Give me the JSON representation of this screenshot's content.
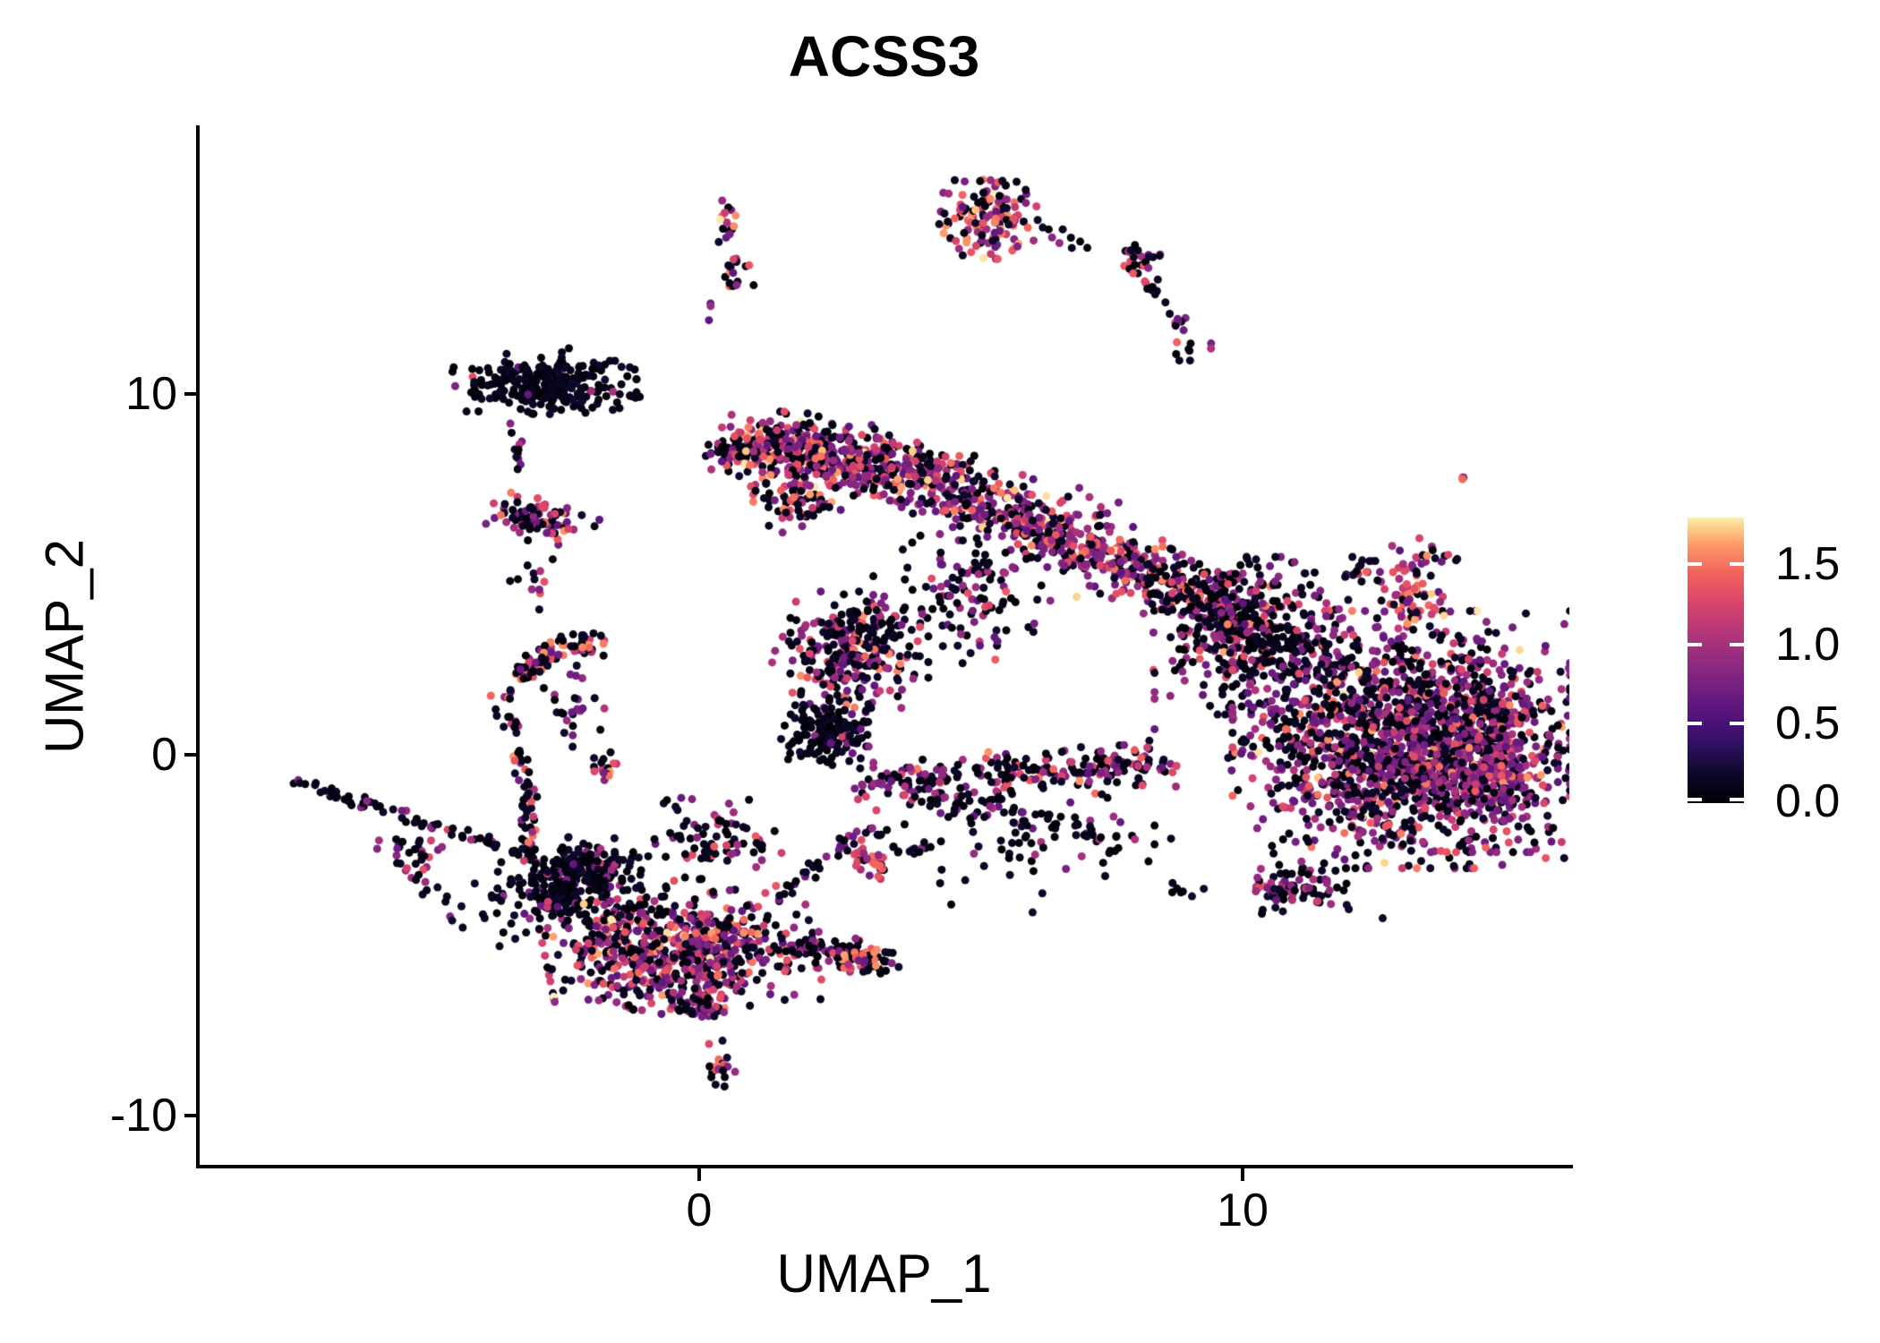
{
  "chart_data": {
    "type": "scatter",
    "title": "ACSS3",
    "xlabel": "UMAP_1",
    "ylabel": "UMAP_2",
    "x_ticks": [
      0,
      10
    ],
    "x_tick_labels": [
      "0",
      "10"
    ],
    "y_ticks": [
      10,
      0,
      -10
    ],
    "y_tick_labels": [
      "10",
      "0",
      "-10"
    ],
    "x_range": [
      -9.2,
      16.0
    ],
    "y_range": [
      -11.4,
      17.4
    ],
    "grid": false,
    "point_radius_px": 4.5,
    "colorbar": {
      "title": "",
      "ticks": [
        1.5,
        1.0,
        0.5,
        0.0
      ],
      "tick_labels": [
        "1.5",
        "1.0",
        "0.5",
        "0.0"
      ],
      "vmin": 0.0,
      "vmax": 1.8,
      "colormap": "magma",
      "stops": [
        [
          0.0,
          "#000004"
        ],
        [
          0.1,
          "#0d0829"
        ],
        [
          0.2,
          "#2d1060"
        ],
        [
          0.3,
          "#51127c"
        ],
        [
          0.4,
          "#721f81"
        ],
        [
          0.5,
          "#932b80"
        ],
        [
          0.6,
          "#b63679"
        ],
        [
          0.7,
          "#d8456c"
        ],
        [
          0.8,
          "#f1605d"
        ],
        [
          0.9,
          "#fd9567"
        ],
        [
          0.97,
          "#fdd48a"
        ],
        [
          1.0,
          "#fcedb8"
        ]
      ]
    },
    "expression_levels": {
      "black": [
        0.0,
        0.2
      ],
      "purple": [
        0.6,
        1.05
      ],
      "pink": [
        1.15,
        1.42
      ],
      "orange": [
        1.44,
        1.66
      ],
      "cream": [
        1.7,
        1.8
      ]
    },
    "clusters": [
      {
        "k": "b",
        "c": [
          0.51,
          14.79
        ],
        "r": [
          0.26,
          0.65
        ],
        "n": 16,
        "m": {
          "orange": 0.22,
          "cream": 0.07,
          "pink": 0.2,
          "purple": 0.3
        }
      },
      {
        "k": "b",
        "c": [
          0.68,
          13.3
        ],
        "r": [
          0.28,
          0.65
        ],
        "n": 18,
        "m": {
          "pink": 0.27,
          "purple": 0.18,
          "orange": 0.1
        }
      },
      {
        "k": "b",
        "c": [
          0.28,
          12.33
        ],
        "r": [
          0.1,
          0.25
        ],
        "n": 3,
        "m": {
          "orange": 0.4,
          "purple": 0.6
        }
      },
      {
        "k": "b",
        "c": [
          5.34,
          14.84
        ],
        "r": [
          0.79,
          0.94
        ],
        "rot": -5,
        "n": 150,
        "m": {
          "purple": 0.36,
          "pink": 0.21,
          "orange": 0.13,
          "cream": 0.04
        }
      },
      {
        "k": "s",
        "p": [
          [
            6.24,
            14.59
          ],
          [
            7.56,
            13.85
          ]
        ],
        "j": [
          0.12,
          0.18
        ],
        "n": 9,
        "m": {
          "purple": 0.35
        }
      },
      {
        "k": "b",
        "c": [
          8.02,
          13.77
        ],
        "r": [
          0.45,
          0.42
        ],
        "n": 22,
        "m": {
          "purple": 0.3,
          "pink": 0.1
        }
      },
      {
        "k": "s",
        "p": [
          [
            8.06,
            13.47
          ],
          [
            8.88,
            11.86
          ]
        ],
        "j": [
          0.15,
          0.25
        ],
        "n": 20,
        "m": {
          "purple": 0.3,
          "pink": 0.15
        }
      },
      {
        "k": "b",
        "c": [
          9.04,
          11.19
        ],
        "r": [
          0.5,
          0.32
        ],
        "n": 9,
        "m": {
          "purple": 0.35,
          "orange": 0.15
        }
      },
      {
        "k": "b",
        "c": [
          -2.82,
          10.3
        ],
        "r": [
          1.45,
          0.8
        ],
        "rot": 7,
        "n": 260,
        "m": {
          "purple": 0.06,
          "pink": 0.01
        }
      },
      {
        "k": "s",
        "p": [
          [
            -1.66,
            10.0
          ],
          [
            -1.09,
            9.95
          ]
        ],
        "j": [
          0.1,
          0.1
        ],
        "n": 7,
        "m": {}
      },
      {
        "k": "s",
        "p": [
          [
            -3.39,
            9.26
          ],
          [
            -3.31,
            7.52
          ]
        ],
        "j": [
          0.12,
          0.2
        ],
        "n": 11,
        "m": {
          "purple": 0.2
        }
      },
      {
        "k": "b",
        "c": [
          -2.95,
          6.53
        ],
        "r": [
          0.95,
          0.55
        ],
        "rot": -12,
        "n": 80,
        "m": {
          "purple": 0.3,
          "orange": 0.13,
          "pink": 0.15
        }
      },
      {
        "k": "b",
        "c": [
          -3.11,
          4.79
        ],
        "r": [
          0.4,
          0.8
        ],
        "n": 12,
        "m": {
          "purple": 0.3,
          "pink": 0.15
        }
      },
      {
        "k": "b",
        "c": [
          0.51,
          8.39
        ],
        "r": [
          0.35,
          0.32
        ],
        "n": 35,
        "m": {
          "purple": 0.15
        }
      },
      {
        "k": "s",
        "p": [
          [
            0.81,
            8.44
          ],
          [
            3.3,
            8.8
          ],
          [
            7.73,
            5.2
          ]
        ],
        "j": [
          0.72,
          0.9
        ],
        "n": 950,
        "m": {
          "purple": 0.38,
          "pink": 0.17,
          "orange": 0.08,
          "cream": 0.03
        }
      },
      {
        "k": "s",
        "p": [
          [
            7.73,
            5.29
          ],
          [
            10.2,
            3.8
          ]
        ],
        "j": [
          0.6,
          0.9
        ],
        "n": 260,
        "m": {
          "purple": 0.33,
          "pink": 0.13,
          "orange": 0.09
        }
      },
      {
        "k": "b",
        "c": [
          2.78,
          2.8
        ],
        "r": [
          1.25,
          1.5
        ],
        "n": 300,
        "m": {
          "purple": 0.25,
          "pink": 0.14,
          "orange": 0.06
        }
      },
      {
        "k": "b",
        "c": [
          2.37,
          0.69
        ],
        "r": [
          0.75,
          0.85
        ],
        "n": 150,
        "m": {
          "purple": 0.1,
          "pink": 0.02
        }
      },
      {
        "k": "b",
        "c": [
          4.93,
          4.54
        ],
        "r": [
          1.5,
          1.75
        ],
        "n": 130,
        "m": {
          "purple": 0.3,
          "pink": 0.1
        }
      },
      {
        "k": "s",
        "p": [
          [
            2.95,
            -0.92
          ],
          [
            5.5,
            -0.5
          ],
          [
            8.55,
            -0.3
          ]
        ],
        "j": [
          0.4,
          0.6
        ],
        "n": 240,
        "m": {
          "purple": 0.33,
          "pink": 0.1,
          "orange": 0.05
        }
      },
      {
        "k": "s",
        "p": [
          [
            4.3,
            -1.3
          ],
          [
            7.7,
            -2.2
          ]
        ],
        "j": [
          0.5,
          0.5
        ],
        "n": 70,
        "m": {
          "purple": 0.28
        }
      },
      {
        "k": "b",
        "c": [
          1.8,
          7.02
        ],
        "r": [
          0.7,
          0.75
        ],
        "n": 80,
        "m": {
          "purple": 0.28,
          "pink": 0.15,
          "orange": 0.07
        }
      },
      {
        "k": "b",
        "c": [
          10.2,
          3.3
        ],
        "r": [
          1.6,
          1.9
        ],
        "n": 400,
        "m": {
          "purple": 0.26,
          "pink": 0.06,
          "orange": 0.02
        }
      },
      {
        "k": "b",
        "c": [
          12.92,
          0.42
        ],
        "r": [
          2.7,
          3.1
        ],
        "n": 1500,
        "m": {
          "purple": 0.37,
          "pink": 0.11,
          "orange": 0.04,
          "cream": 0.01
        }
      },
      {
        "k": "b",
        "c": [
          14.48,
          -0.17
        ],
        "r": [
          1.15,
          2.2
        ],
        "n": 400,
        "m": {
          "purple": 0.49,
          "pink": 0.15,
          "orange": 0.05
        }
      },
      {
        "k": "b",
        "c": [
          13.13,
          4.34
        ],
        "r": [
          0.5,
          0.65
        ],
        "n": 48,
        "m": {
          "orange": 0.28,
          "pink": 0.25,
          "purple": 0.3,
          "cream": 0.05
        }
      },
      {
        "k": "b",
        "c": [
          11.02,
          -3.65
        ],
        "r": [
          1.0,
          0.6
        ],
        "n": 80,
        "m": {
          "purple": 0.35,
          "pink": 0.05
        }
      },
      {
        "k": "b",
        "c": [
          9.04,
          -3.9
        ],
        "r": [
          0.4,
          0.3
        ],
        "n": 7,
        "m": {}
      },
      {
        "k": "s",
        "p": [
          [
            11.84,
            5.04
          ],
          [
            13.82,
            5.53
          ]
        ],
        "j": [
          0.35,
          0.5
        ],
        "n": 45,
        "m": {
          "purple": 0.3,
          "pink": 0.1,
          "orange": 0.1
        }
      },
      {
        "k": "b",
        "c": [
          12.75,
          0.3
        ],
        "r": [
          3.8,
          4.2
        ],
        "n": 130,
        "m": {
          "purple": 0.25
        }
      },
      {
        "k": "s",
        "p": [
          [
            -1.75,
            3.0
          ],
          [
            -3.06,
            3.25
          ],
          [
            -3.67,
            1.32
          ]
        ],
        "j": [
          0.22,
          0.35
        ],
        "n": 95,
        "m": {
          "purple": 0.25,
          "pink": 0.17,
          "orange": 0.13
        }
      },
      {
        "k": "s",
        "p": [
          [
            -3.44,
            1.07
          ],
          [
            -2.98,
            -1.41
          ],
          [
            -3.18,
            -3.03
          ]
        ],
        "j": [
          0.18,
          0.3
        ],
        "n": 60,
        "m": {
          "purple": 0.22,
          "pink": 0.17,
          "orange": 0.11
        }
      },
      {
        "k": "b",
        "c": [
          -2.32,
          1.32
        ],
        "r": [
          0.5,
          1.0
        ],
        "n": 25,
        "m": {
          "purple": 0.4
        }
      },
      {
        "k": "b",
        "c": [
          -1.7,
          -0.22
        ],
        "r": [
          0.25,
          0.55
        ],
        "n": 15,
        "m": {
          "orange": 0.2,
          "pink": 0.15,
          "purple": 0.15
        }
      },
      {
        "k": "s",
        "p": [
          [
            -7.76,
            -0.55
          ],
          [
            -5.29,
            -1.79
          ],
          [
            -2.98,
            -2.85
          ]
        ],
        "j": [
          0.12,
          0.17
        ],
        "n": 70,
        "m": {
          "purple": 0.2,
          "pink": 0.05
        }
      },
      {
        "k": "b",
        "c": [
          -2.16,
          -3.03
        ],
        "r": [
          0.8,
          0.65
        ],
        "n": 110,
        "m": {
          "purple": 0.12,
          "pink": 0.03
        }
      },
      {
        "k": "b",
        "c": [
          -5.12,
          -2.66
        ],
        "r": [
          0.7,
          0.75
        ],
        "n": 25,
        "m": {
          "purple": 0.2,
          "pink": 0.1
        }
      },
      {
        "k": "s",
        "p": [
          [
            -5.78,
            -2.41
          ],
          [
            -4.3,
            -4.64
          ]
        ],
        "j": [
          0.2,
          0.3
        ],
        "n": 18,
        "m": {
          "purple": 0.2
        }
      },
      {
        "k": "b",
        "c": [
          -2.32,
          -3.9
        ],
        "r": [
          1.5,
          1.0
        ],
        "rot": 10,
        "n": 240,
        "m": {
          "purple": 0.16,
          "pink": 0.06
        }
      },
      {
        "k": "b",
        "c": [
          -0.35,
          -5.51
        ],
        "r": [
          2.15,
          1.4
        ],
        "rot": 8,
        "n": 700,
        "m": {
          "purple": 0.32,
          "pink": 0.18,
          "orange": 0.08,
          "cream": 0.02
        }
      },
      {
        "k": "b",
        "c": [
          0.07,
          -6.87
        ],
        "r": [
          0.5,
          0.45
        ],
        "n": 45,
        "m": {
          "purple": 0.3,
          "pink": 0.1
        }
      },
      {
        "k": "s",
        "p": [
          [
            1.63,
            -5.26
          ],
          [
            3.44,
            -5.76
          ]
        ],
        "j": [
          0.3,
          0.45
        ],
        "n": 90,
        "m": {
          "purple": 0.22,
          "pink": 0.06
        }
      },
      {
        "k": "b",
        "c": [
          2.98,
          -5.68
        ],
        "r": [
          0.5,
          0.35
        ],
        "n": 32,
        "m": {
          "orange": 0.33,
          "pink": 0.3,
          "purple": 0.25
        }
      },
      {
        "k": "s",
        "p": [
          [
            2.78,
            -2.53
          ],
          [
            3.53,
            -3.28
          ]
        ],
        "j": [
          0.22,
          0.35
        ],
        "n": 38,
        "m": {
          "pink": 0.28,
          "orange": 0.2,
          "purple": 0.3
        }
      },
      {
        "k": "b",
        "c": [
          0.31,
          -2.41
        ],
        "r": [
          1.15,
          1.1
        ],
        "n": 80,
        "m": {
          "purple": 0.25,
          "pink": 0.11
        }
      },
      {
        "k": "s",
        "p": [
          [
            1.47,
            -4.02
          ],
          [
            2.95,
            -2.03
          ]
        ],
        "j": [
          0.15,
          0.25
        ],
        "n": 26,
        "m": {
          "purple": 0.2
        }
      },
      {
        "k": "s",
        "p": [
          [
            2.95,
            -2.03
          ],
          [
            4.6,
            -3.03
          ]
        ],
        "j": [
          0.15,
          0.25
        ],
        "n": 20,
        "m": {
          "purple": 0.3
        }
      },
      {
        "k": "b",
        "c": [
          6.08,
          -2.65
        ],
        "r": [
          2.0,
          1.5
        ],
        "n": 55,
        "m": {
          "purple": 0.2
        }
      },
      {
        "k": "b",
        "c": [
          0.35,
          -8.66
        ],
        "r": [
          0.28,
          0.7
        ],
        "n": 22,
        "m": {
          "purple": 0.2,
          "pink": 0.13,
          "orange": 0.12
        }
      },
      {
        "k": "b",
        "c": [
          14.05,
          7.69
        ],
        "r": [
          0.12,
          0.18
        ],
        "n": 3,
        "m": {
          "orange": 0.34,
          "purple": 0.33
        }
      },
      {
        "k": "b",
        "c": [
          7.23,
          7.02
        ],
        "r": [
          0.5,
          0.6
        ],
        "n": 7,
        "m": {
          "purple": 0.4
        }
      }
    ]
  }
}
